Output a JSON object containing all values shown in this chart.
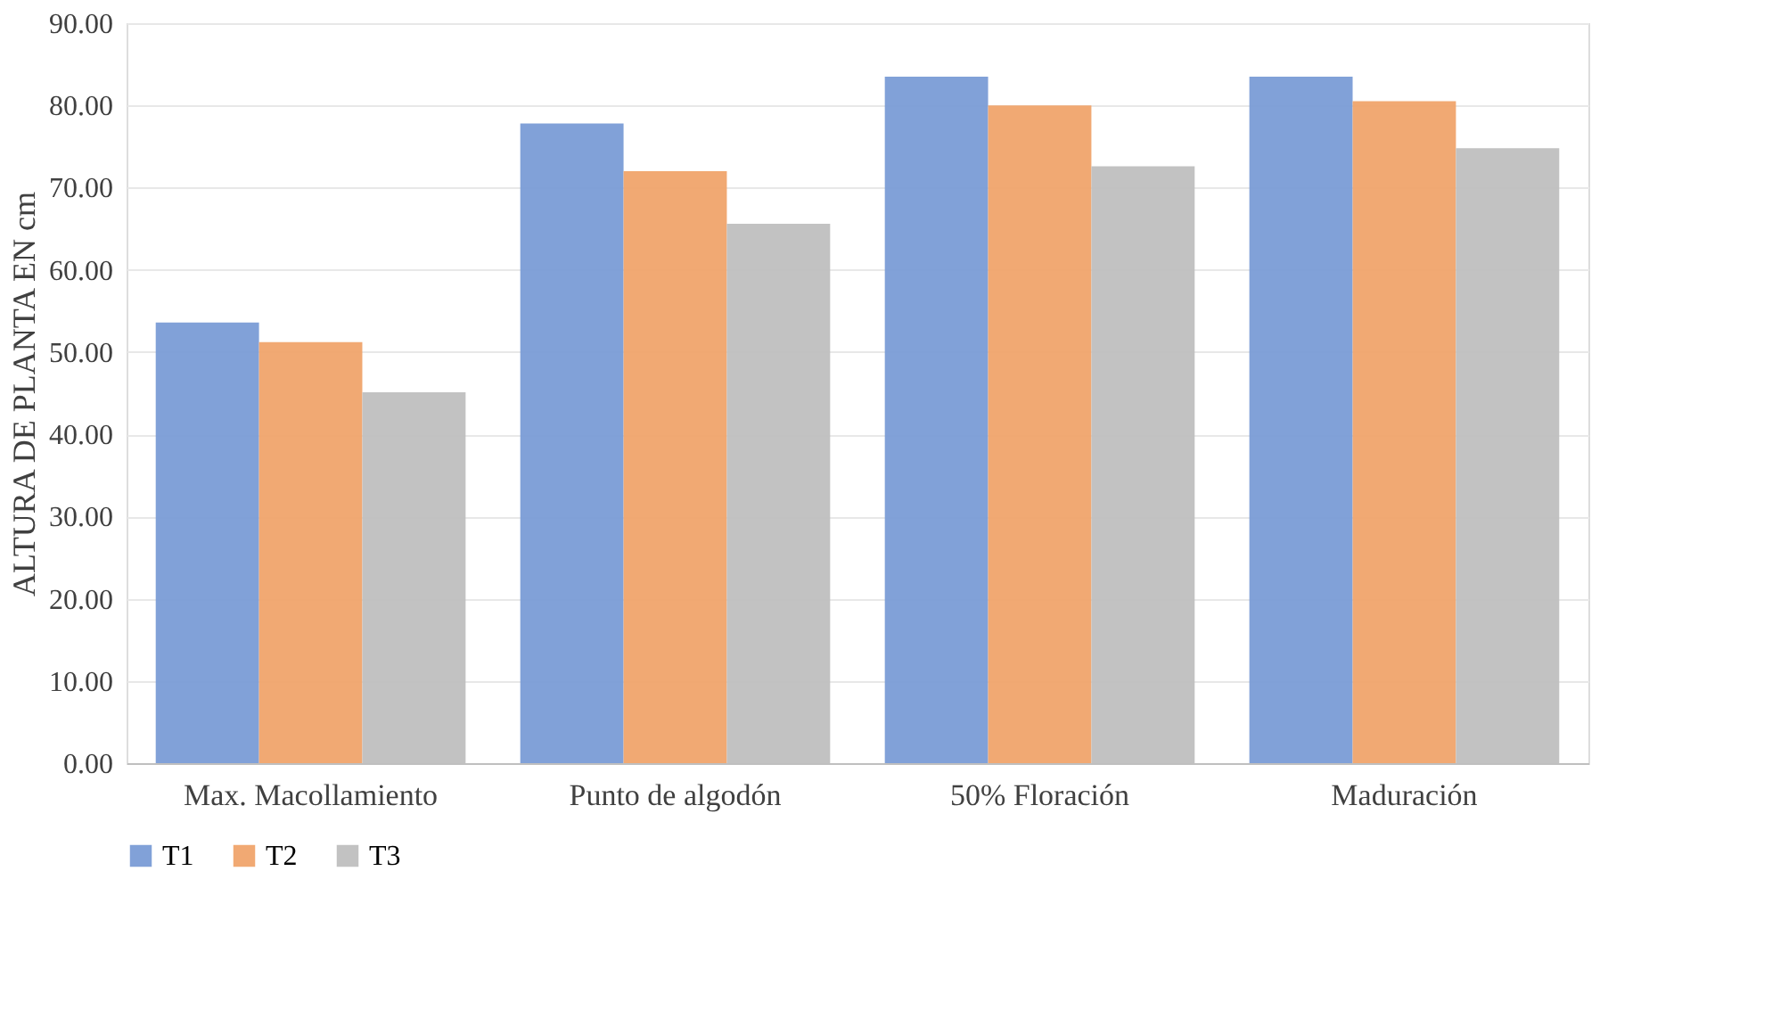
{
  "chart_data": {
    "type": "bar",
    "ylabel": "ALTURA DE PLANTA EN cm",
    "categories": [
      "Max. Macollamiento",
      "Punto de algodón",
      "50% Floración",
      "Maduración"
    ],
    "series": [
      {
        "name": "T1",
        "color": "#7a9cd6",
        "values": [
          53.6,
          77.8,
          83.5,
          83.5
        ]
      },
      {
        "name": "T2",
        "color": "#f0a46c",
        "values": [
          51.2,
          72.0,
          80.0,
          80.5
        ]
      },
      {
        "name": "T3",
        "color": "#bfbfbf",
        "values": [
          45.1,
          65.6,
          72.6,
          74.8
        ]
      }
    ],
    "ylim": [
      0,
      90
    ],
    "yticks": [
      {
        "value": 0,
        "label": "0.00"
      },
      {
        "value": 10,
        "label": "10.00"
      },
      {
        "value": 20,
        "label": "20.00"
      },
      {
        "value": 30,
        "label": "30.00"
      },
      {
        "value": 40,
        "label": "40.00"
      },
      {
        "value": 50,
        "label": "50.00"
      },
      {
        "value": 60,
        "label": "60.00"
      },
      {
        "value": 70,
        "label": "70.00"
      },
      {
        "value": 80,
        "label": "80.00"
      },
      {
        "value": 90,
        "label": "90.00"
      }
    ],
    "grid": "y",
    "legend": "bottom"
  }
}
